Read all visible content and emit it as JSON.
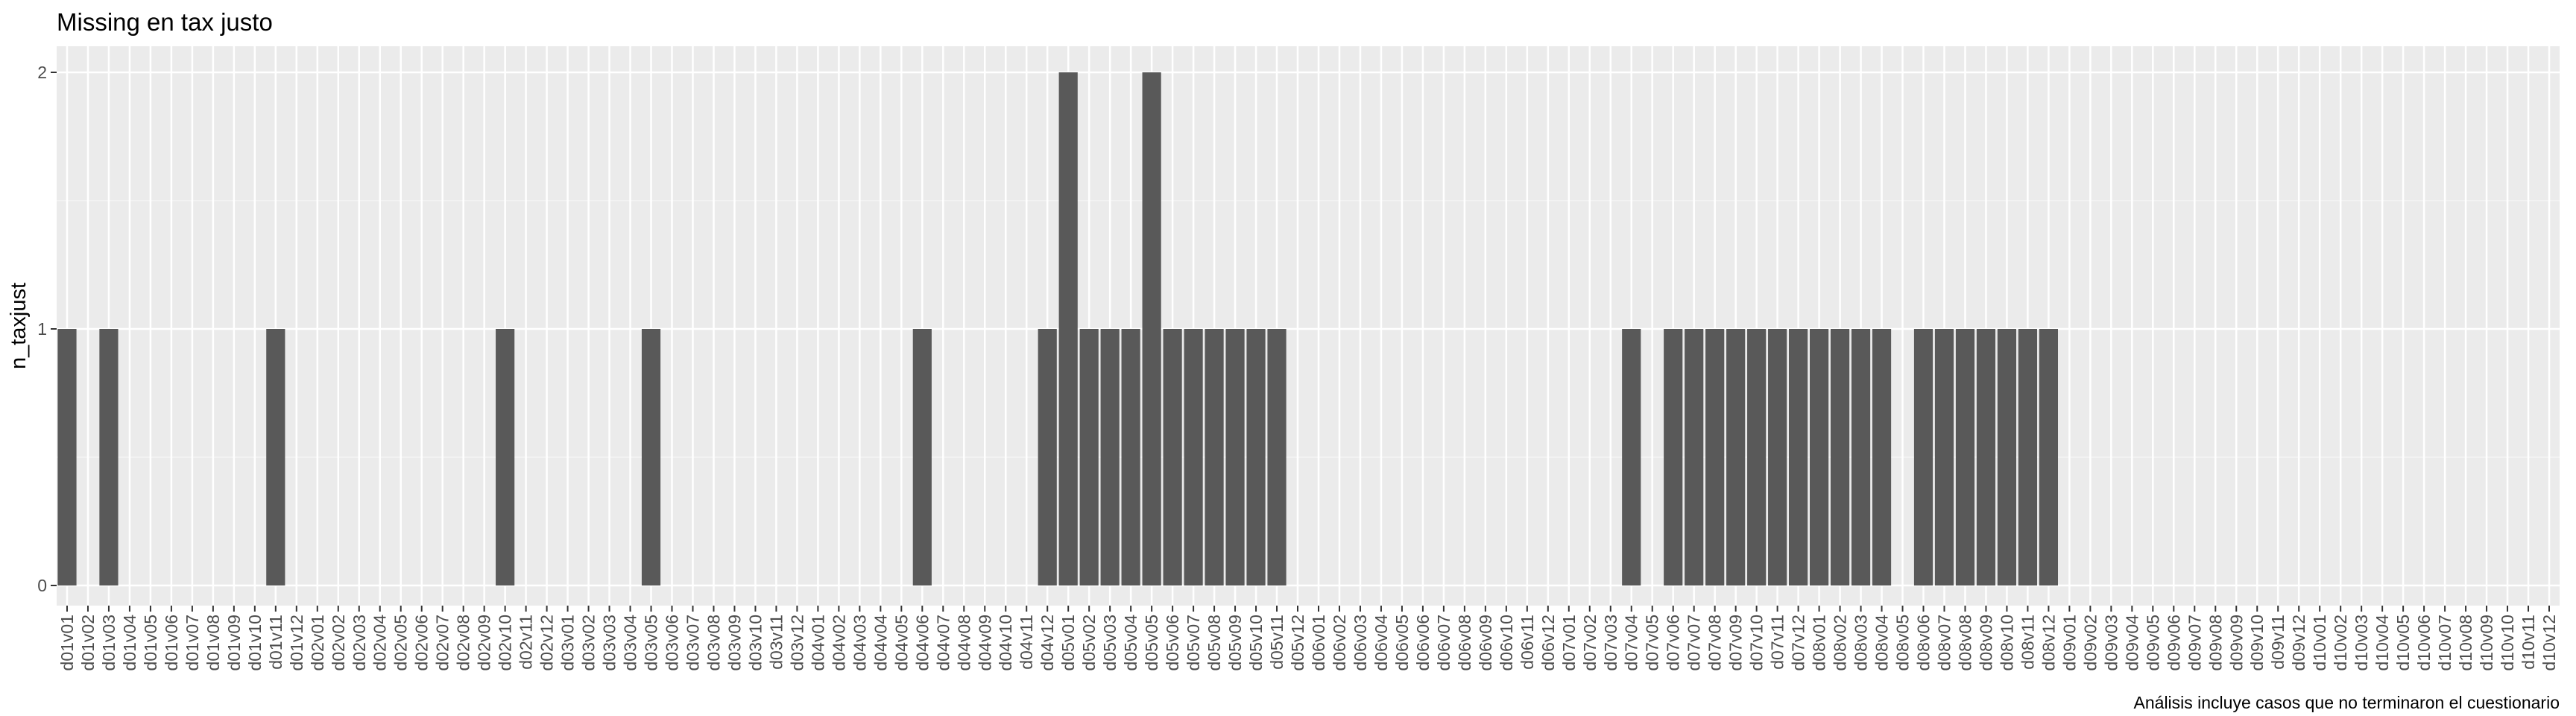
{
  "chart_data": {
    "type": "bar",
    "title": "Missing en tax justo",
    "xlabel": "",
    "ylabel": "n_taxjust",
    "caption": "Análisis incluye casos que no terminaron el cuestionario",
    "ylim": [
      0,
      2
    ],
    "yticks": [
      0,
      1,
      2
    ],
    "grid": true,
    "categories": [
      "d01v01",
      "d01v02",
      "d01v03",
      "d01v04",
      "d01v05",
      "d01v06",
      "d01v07",
      "d01v08",
      "d01v09",
      "d01v10",
      "d01v11",
      "d01v12",
      "d02v01",
      "d02v02",
      "d02v03",
      "d02v04",
      "d02v05",
      "d02v06",
      "d02v07",
      "d02v08",
      "d02v09",
      "d02v10",
      "d02v11",
      "d02v12",
      "d03v01",
      "d03v02",
      "d03v03",
      "d03v04",
      "d03v05",
      "d03v06",
      "d03v07",
      "d03v08",
      "d03v09",
      "d03v10",
      "d03v11",
      "d03v12",
      "d04v01",
      "d04v02",
      "d04v03",
      "d04v04",
      "d04v05",
      "d04v06",
      "d04v07",
      "d04v08",
      "d04v09",
      "d04v10",
      "d04v11",
      "d04v12",
      "d05v01",
      "d05v02",
      "d05v03",
      "d05v04",
      "d05v05",
      "d05v06",
      "d05v07",
      "d05v08",
      "d05v09",
      "d05v10",
      "d05v11",
      "d05v12",
      "d06v01",
      "d06v02",
      "d06v03",
      "d06v04",
      "d06v05",
      "d06v06",
      "d06v07",
      "d06v08",
      "d06v09",
      "d06v10",
      "d06v11",
      "d06v12",
      "d07v01",
      "d07v02",
      "d07v03",
      "d07v04",
      "d07v05",
      "d07v06",
      "d07v07",
      "d07v08",
      "d07v09",
      "d07v10",
      "d07v11",
      "d07v12",
      "d08v01",
      "d08v02",
      "d08v03",
      "d08v04",
      "d08v05",
      "d08v06",
      "d08v07",
      "d08v08",
      "d08v09",
      "d08v10",
      "d08v11",
      "d08v12",
      "d09v01",
      "d09v02",
      "d09v03",
      "d09v04",
      "d09v05",
      "d09v06",
      "d09v07",
      "d09v08",
      "d09v09",
      "d09v10",
      "d09v11",
      "d09v12",
      "d10v01",
      "d10v02",
      "d10v03",
      "d10v04",
      "d10v05",
      "d10v06",
      "d10v07",
      "d10v08",
      "d10v09",
      "d10v10",
      "d10v11",
      "d10v12"
    ],
    "values": [
      1,
      0,
      1,
      0,
      0,
      0,
      0,
      0,
      0,
      0,
      1,
      0,
      0,
      0,
      0,
      0,
      0,
      0,
      0,
      0,
      0,
      1,
      0,
      0,
      0,
      0,
      0,
      0,
      1,
      0,
      0,
      0,
      0,
      0,
      0,
      0,
      0,
      0,
      0,
      0,
      0,
      1,
      0,
      0,
      0,
      0,
      0,
      1,
      2,
      1,
      1,
      1,
      2,
      1,
      1,
      1,
      1,
      1,
      1,
      0,
      0,
      0,
      0,
      0,
      0,
      0,
      0,
      0,
      0,
      0,
      0,
      0,
      0,
      0,
      0,
      1,
      0,
      1,
      1,
      1,
      1,
      1,
      1,
      1,
      1,
      1,
      1,
      1,
      0,
      1,
      1,
      1,
      1,
      1,
      1,
      1,
      0,
      0,
      0,
      0,
      0,
      0,
      0,
      0,
      0,
      0,
      0,
      0,
      0,
      0,
      0,
      0,
      0,
      0,
      0,
      0,
      0,
      0,
      0,
      0
    ],
    "colors": {
      "bar": "#595959",
      "panel": "#ebebeb",
      "grid_major": "#ffffff",
      "grid_minor": "#f5f5f5",
      "tick_text": "#4d4d4d"
    }
  }
}
